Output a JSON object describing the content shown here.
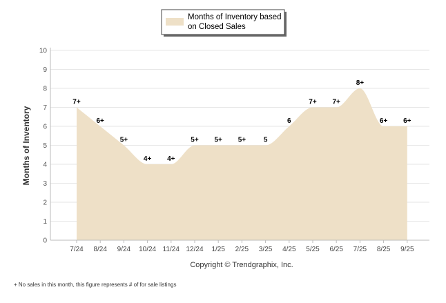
{
  "chart_data": {
    "type": "area",
    "title": "",
    "categories": [
      "7/24",
      "8/24",
      "9/24",
      "10/24",
      "11/24",
      "12/24",
      "1/25",
      "2/25",
      "3/25",
      "4/25",
      "5/25",
      "6/25",
      "7/25",
      "8/25",
      "9/25"
    ],
    "series": [
      {
        "name": "Months of Inventory based on Closed Sales",
        "values": [
          7,
          6,
          5,
          4,
          4,
          5,
          5,
          5,
          5,
          6,
          7,
          7,
          8,
          6,
          6
        ],
        "labels": [
          "7+",
          "6+",
          "5+",
          "4+",
          "4+",
          "5+",
          "5+",
          "5+",
          "5",
          "6",
          "7+",
          "7+",
          "8+",
          "6+",
          "6+"
        ],
        "color": "#eee0c7"
      }
    ],
    "ylabel": "Months of Inventory",
    "xlabel": "",
    "ylim": [
      0,
      10
    ],
    "yticks": [
      0,
      1,
      2,
      3,
      4,
      5,
      6,
      7,
      8,
      9,
      10
    ],
    "grid": true,
    "legend": {
      "position": "top-center",
      "line1": "Months of Inventory based",
      "line2": "on Closed Sales"
    }
  },
  "copyright": "Copyright © Trendgraphix, Inc.",
  "footnote": "+ No sales in this month, this figure represents # of for sale listings",
  "colors": {
    "area_fill": "#eee0c7",
    "grid": "#e6e6e6",
    "axis": "#bbbbbb"
  }
}
